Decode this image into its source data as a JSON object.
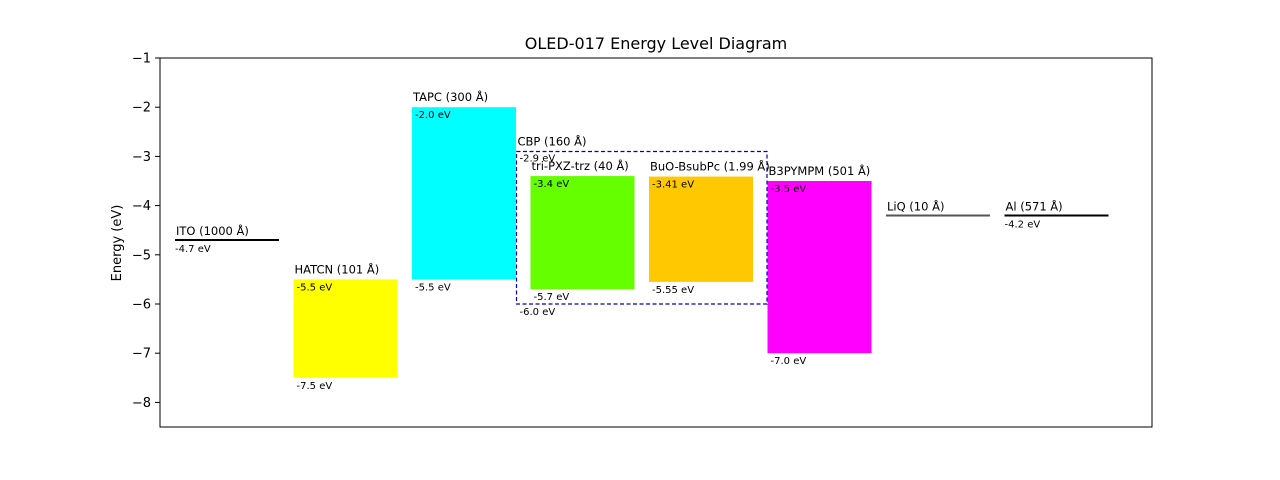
{
  "chart_data": {
    "type": "bar",
    "title": "OLED-017 Energy Level Diagram",
    "ylabel": "Energy (eV)",
    "xlabel": "",
    "ylim": [
      -8.5,
      -1
    ],
    "yticks": [
      -1,
      -2,
      -3,
      -4,
      -5,
      -6,
      -7,
      -8
    ],
    "ytick_labels": [
      "−1",
      "−2",
      "−3",
      "−4",
      "−5",
      "−6",
      "−7",
      "−8"
    ],
    "grid": false,
    "layers": [
      {
        "name": "ITO (1000 Å)",
        "kind": "electrode",
        "level": -4.7,
        "level_label": "-4.7 eV",
        "color": "#000000"
      },
      {
        "name": "HATCN (101 Å)",
        "kind": "band",
        "top": -5.5,
        "bottom": -7.5,
        "top_label": "-5.5 eV",
        "bottom_label": "-7.5 eV",
        "color": "#ffff00"
      },
      {
        "name": "TAPC (300 Å)",
        "kind": "band",
        "top": -2.0,
        "bottom": -5.5,
        "top_label": "-2.0 eV",
        "bottom_label": "-5.5 eV",
        "color": "#00ffff"
      },
      {
        "name": "tri-PXZ-trz (40 Å)",
        "kind": "band",
        "top": -3.4,
        "bottom": -5.7,
        "top_label": "-3.4 eV",
        "bottom_label": "-5.7 eV",
        "color": "#66ff00"
      },
      {
        "name": "BuO-BsubPc (1.99 Å)",
        "kind": "band",
        "top": -3.41,
        "bottom": -5.55,
        "top_label": "-3.41 eV",
        "bottom_label": "-5.55 eV",
        "color": "#ffc800"
      },
      {
        "name": "B3PYMPM (501 Å)",
        "kind": "band",
        "top": -3.5,
        "bottom": -7.0,
        "top_label": "-3.5 eV",
        "bottom_label": "-7.0 eV",
        "color": "#ff00ff"
      },
      {
        "name": "LiQ (10 Å)",
        "kind": "electrode",
        "level": -4.2,
        "level_label": "",
        "color": "#555555"
      },
      {
        "name": "Al (571 Å)",
        "kind": "electrode",
        "level": -4.2,
        "level_label": "-4.2 eV",
        "color": "#000000"
      }
    ],
    "host": {
      "name": "CBP (160 Å)",
      "top": -2.9,
      "bottom": -6.0,
      "top_label": "-2.9 eV",
      "bottom_label": "-6.0 eV",
      "color": "#0000cc",
      "style": "dashed"
    }
  }
}
